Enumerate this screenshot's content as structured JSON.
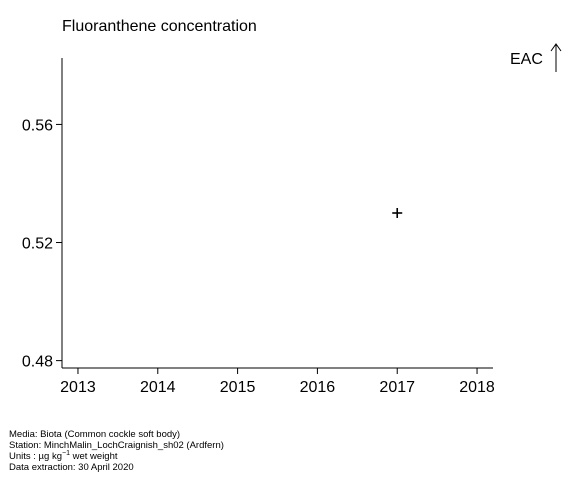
{
  "chart_data": {
    "type": "scatter",
    "title": "Fluoranthene concentration",
    "xlabel": "",
    "ylabel": "",
    "x_ticks": [
      2013,
      2014,
      2015,
      2016,
      2017,
      2018
    ],
    "y_ticks": [
      "0.48",
      "0.52",
      "0.56"
    ],
    "xlim": [
      2012.8,
      2018.2
    ],
    "ylim": [
      0.4775,
      0.5825
    ],
    "points": [
      {
        "x": 2017,
        "y": 0.53,
        "marker": "+"
      }
    ],
    "annotations": [
      {
        "text": "EAC",
        "arrow": "up",
        "position": "top-right"
      }
    ],
    "grid": false,
    "color": "#000000"
  },
  "footer": {
    "media": "Media: Biota (Common cockle soft body)",
    "station": "Station: MinchMalin_LochCraignish_sh02 (Ardfern)",
    "units_prefix": "Units : µg kg",
    "units_sup": "−1",
    "units_suffix": " wet weight",
    "extraction": "Data extraction: 30 April 2020"
  }
}
